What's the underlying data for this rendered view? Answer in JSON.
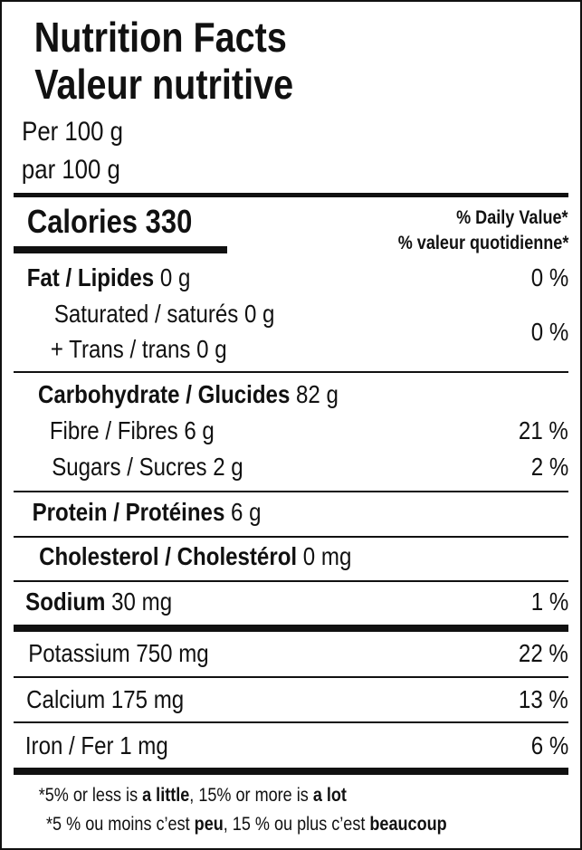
{
  "title_en": "Nutrition Facts",
  "title_fr": "Valeur nutritive",
  "serving_en": "Per 100 g",
  "serving_fr": "par 100 g",
  "calories": {
    "label": "Calories",
    "value": "330"
  },
  "dv_en": "% Daily Value*",
  "dv_fr": "% valeur quotidienne*",
  "rows": {
    "fat": {
      "label": "Fat / Lipides",
      "amount": "0 g",
      "dv": "0 %"
    },
    "saturated": {
      "label": "Saturated / saturés 0 g"
    },
    "trans": {
      "label": "+ Trans / trans 0 g",
      "dv": "0 %"
    },
    "carb": {
      "label": "Carbohydrate / Glucides",
      "amount": "82 g"
    },
    "fibre": {
      "label": "Fibre / Fibres 6 g",
      "dv": "21 %"
    },
    "sugars": {
      "label": "Sugars / Sucres 2 g",
      "dv": "2 %"
    },
    "protein": {
      "label": "Protein / Protéines",
      "amount": "6 g"
    },
    "cholesterol": {
      "label": "Cholesterol / Cholestérol",
      "amount": "0 mg"
    },
    "sodium": {
      "label": "Sodium",
      "amount": "30 mg",
      "dv": "1 %"
    },
    "potassium": {
      "label": "Potassium 750 mg",
      "dv": "22 %"
    },
    "calcium": {
      "label": "Calcium 175 mg",
      "dv": "13 %"
    },
    "iron": {
      "label": "Iron / Fer 1 mg",
      "dv": "6 %"
    }
  },
  "footnote_en": {
    "a": "*5% or less is ",
    "b": "a little",
    ",c": ", 15% or more is ",
    "d": "a lot"
  },
  "footnote_fr": {
    "a": "*5 % ou moins c’est ",
    "b": "peu",
    "c": ", 15 % ou plus c’est ",
    "d": "beaucoup"
  }
}
